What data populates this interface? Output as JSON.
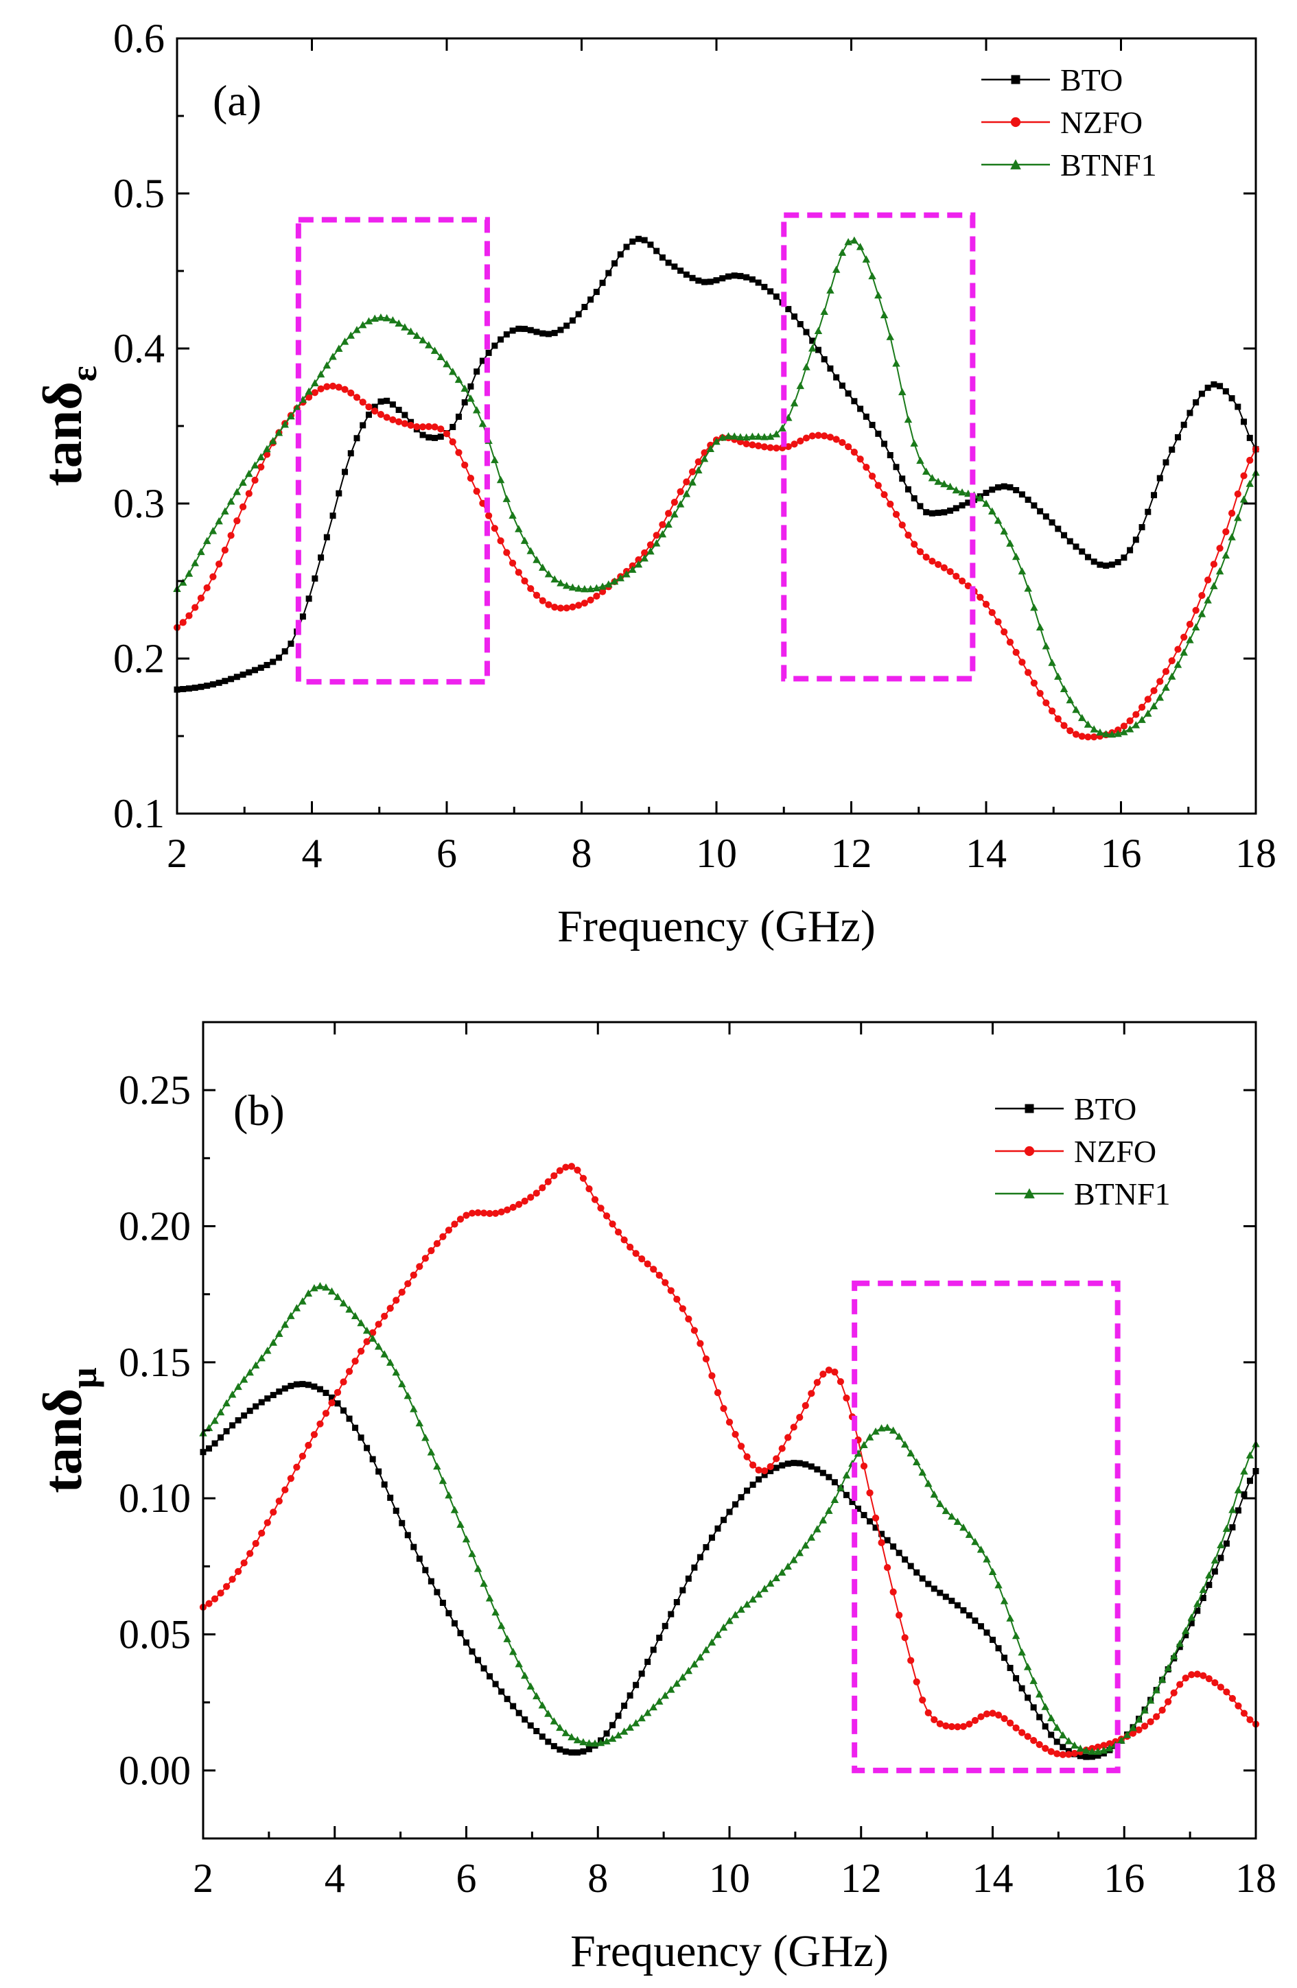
{
  "figure": {
    "background": "#ffffff",
    "highlight_color": "#ee22ee"
  },
  "chart_data": [
    {
      "type": "line",
      "panel_label": "(a)",
      "xlabel": "Frequency (GHz)",
      "ylabel_main": "tanδ",
      "ylabel_sub": "ε",
      "xlim": [
        2,
        18
      ],
      "ylim": [
        0.1,
        0.6
      ],
      "xticks": [
        2,
        4,
        6,
        8,
        10,
        12,
        14,
        16,
        18
      ],
      "xtick_labels": [
        "2",
        "4",
        "6",
        "8",
        "10",
        "12",
        "14",
        "16",
        "18"
      ],
      "yticks": [
        0.1,
        0.2,
        0.3,
        0.4,
        0.5,
        0.6
      ],
      "ytick_labels": [
        "0.1",
        "0.2",
        "0.3",
        "0.4",
        "0.5",
        "0.6"
      ],
      "legend_position": "top-right",
      "highlight_boxes": [
        {
          "x0": 3.8,
          "x1": 6.6,
          "y0": 0.185,
          "y1": 0.483
        },
        {
          "x0": 11.0,
          "x1": 13.8,
          "y0": 0.187,
          "y1": 0.486
        }
      ],
      "series": [
        {
          "name": "BTO",
          "color": "#000000",
          "marker": "square",
          "x": [
            2.0,
            2.5,
            3.0,
            3.5,
            3.8,
            4.2,
            4.6,
            5.0,
            5.3,
            5.7,
            6.1,
            6.5,
            7.0,
            7.6,
            8.1,
            8.8,
            9.3,
            9.8,
            10.3,
            10.7,
            11.2,
            11.8,
            12.4,
            13.0,
            13.3,
            13.7,
            14.3,
            14.8,
            15.4,
            15.8,
            16.2,
            16.7,
            17.3,
            17.7,
            18.0
          ],
          "y": [
            0.18,
            0.183,
            0.19,
            0.2,
            0.22,
            0.275,
            0.335,
            0.365,
            0.36,
            0.343,
            0.35,
            0.39,
            0.412,
            0.41,
            0.43,
            0.47,
            0.455,
            0.443,
            0.447,
            0.44,
            0.418,
            0.38,
            0.345,
            0.3,
            0.294,
            0.3,
            0.311,
            0.295,
            0.27,
            0.26,
            0.275,
            0.33,
            0.375,
            0.365,
            0.335
          ]
        },
        {
          "name": "NZFO",
          "color": "#ee1111",
          "marker": "circle",
          "x": [
            2.0,
            2.5,
            3.0,
            3.5,
            4.0,
            4.4,
            5.0,
            5.5,
            6.0,
            6.5,
            7.0,
            7.5,
            8.0,
            8.5,
            9.0,
            9.5,
            10.0,
            10.5,
            11.0,
            11.5,
            12.0,
            12.5,
            13.0,
            13.5,
            14.0,
            14.5,
            15.0,
            15.4,
            16.0,
            16.5,
            17.0,
            17.5,
            18.0
          ],
          "y": [
            0.22,
            0.25,
            0.3,
            0.345,
            0.37,
            0.375,
            0.358,
            0.35,
            0.345,
            0.303,
            0.26,
            0.235,
            0.235,
            0.25,
            0.272,
            0.31,
            0.341,
            0.338,
            0.336,
            0.344,
            0.335,
            0.305,
            0.27,
            0.255,
            0.235,
            0.2,
            0.165,
            0.15,
            0.155,
            0.18,
            0.22,
            0.275,
            0.335
          ]
        },
        {
          "name": "BTNF1",
          "color": "#1a7a1a",
          "marker": "triangle",
          "x": [
            2.0,
            2.5,
            3.0,
            3.5,
            4.0,
            4.5,
            5.0,
            5.5,
            6.0,
            6.5,
            7.0,
            7.5,
            8.0,
            8.5,
            9.0,
            9.5,
            10.0,
            10.5,
            11.0,
            11.5,
            12.0,
            12.5,
            13.0,
            13.5,
            14.0,
            14.5,
            15.0,
            15.5,
            16.0,
            16.5,
            17.0,
            17.5,
            18.0
          ],
          "y": [
            0.245,
            0.28,
            0.315,
            0.345,
            0.375,
            0.405,
            0.42,
            0.41,
            0.39,
            0.355,
            0.29,
            0.255,
            0.245,
            0.25,
            0.268,
            0.302,
            0.34,
            0.343,
            0.35,
            0.41,
            0.47,
            0.42,
            0.33,
            0.31,
            0.3,
            0.26,
            0.195,
            0.158,
            0.152,
            0.17,
            0.21,
            0.26,
            0.32
          ]
        }
      ]
    },
    {
      "type": "line",
      "panel_label": "(b)",
      "xlabel": "Frequency (GHz)",
      "ylabel_main": "tanδ",
      "ylabel_sub": "μ",
      "xlim": [
        2,
        18
      ],
      "ylim": [
        -0.025,
        0.275
      ],
      "xticks": [
        2,
        4,
        6,
        8,
        10,
        12,
        14,
        16,
        18
      ],
      "xtick_labels": [
        "2",
        "4",
        "6",
        "8",
        "10",
        "12",
        "14",
        "16",
        "18"
      ],
      "yticks": [
        0.0,
        0.05,
        0.1,
        0.15,
        0.2,
        0.25
      ],
      "ytick_labels": [
        "0.00",
        "0.05",
        "0.10",
        "0.15",
        "0.20",
        "0.25"
      ],
      "legend_position": "top-right",
      "highlight_boxes": [
        {
          "x0": 11.9,
          "x1": 15.9,
          "y0": 0.0,
          "y1": 0.179
        }
      ],
      "series": [
        {
          "name": "BTO",
          "color": "#000000",
          "marker": "square",
          "x": [
            2.0,
            2.5,
            3.0,
            3.5,
            4.0,
            4.5,
            5.0,
            5.5,
            6.0,
            6.5,
            7.0,
            7.5,
            8.0,
            8.5,
            9.0,
            9.5,
            10.0,
            10.5,
            11.0,
            11.5,
            12.0,
            12.5,
            13.0,
            13.5,
            14.0,
            14.5,
            15.0,
            15.5,
            16.0,
            16.5,
            17.0,
            17.5,
            18.0
          ],
          "y": [
            0.117,
            0.128,
            0.137,
            0.142,
            0.136,
            0.118,
            0.092,
            0.068,
            0.047,
            0.03,
            0.016,
            0.007,
            0.01,
            0.028,
            0.052,
            0.076,
            0.095,
            0.108,
            0.113,
            0.108,
            0.095,
            0.082,
            0.069,
            0.06,
            0.048,
            0.028,
            0.01,
            0.005,
            0.012,
            0.03,
            0.053,
            0.08,
            0.11
          ]
        },
        {
          "name": "NZFO",
          "color": "#ee1111",
          "marker": "circle",
          "x": [
            2.0,
            2.5,
            3.0,
            3.5,
            4.0,
            4.5,
            5.0,
            5.5,
            6.0,
            6.5,
            7.0,
            7.6,
            8.0,
            8.5,
            9.0,
            9.5,
            10.0,
            10.5,
            11.0,
            11.5,
            11.8,
            12.2,
            12.6,
            13.0,
            13.5,
            14.0,
            14.5,
            15.0,
            15.5,
            16.0,
            16.5,
            17.0,
            17.5,
            18.0
          ],
          "y": [
            0.06,
            0.072,
            0.092,
            0.115,
            0.137,
            0.158,
            0.175,
            0.192,
            0.204,
            0.205,
            0.211,
            0.222,
            0.208,
            0.192,
            0.18,
            0.16,
            0.128,
            0.11,
            0.127,
            0.147,
            0.135,
            0.095,
            0.055,
            0.022,
            0.016,
            0.021,
            0.013,
            0.006,
            0.008,
            0.012,
            0.02,
            0.035,
            0.03,
            0.017
          ]
        },
        {
          "name": "BTNF1",
          "color": "#1a7a1a",
          "marker": "triangle",
          "x": [
            2.0,
            2.5,
            3.0,
            3.5,
            3.8,
            4.2,
            4.6,
            5.0,
            5.5,
            6.0,
            6.5,
            7.0,
            7.5,
            8.0,
            8.5,
            9.0,
            9.5,
            10.0,
            10.5,
            11.0,
            11.5,
            12.0,
            12.4,
            12.8,
            13.2,
            13.6,
            14.0,
            14.5,
            15.0,
            15.5,
            16.0,
            16.5,
            17.0,
            17.5,
            18.0
          ],
          "y": [
            0.124,
            0.14,
            0.155,
            0.172,
            0.178,
            0.17,
            0.158,
            0.143,
            0.115,
            0.085,
            0.055,
            0.03,
            0.014,
            0.01,
            0.016,
            0.027,
            0.04,
            0.055,
            0.066,
            0.078,
            0.095,
            0.118,
            0.126,
            0.115,
            0.098,
            0.088,
            0.073,
            0.04,
            0.015,
            0.007,
            0.012,
            0.03,
            0.055,
            0.085,
            0.12
          ]
        }
      ]
    }
  ]
}
